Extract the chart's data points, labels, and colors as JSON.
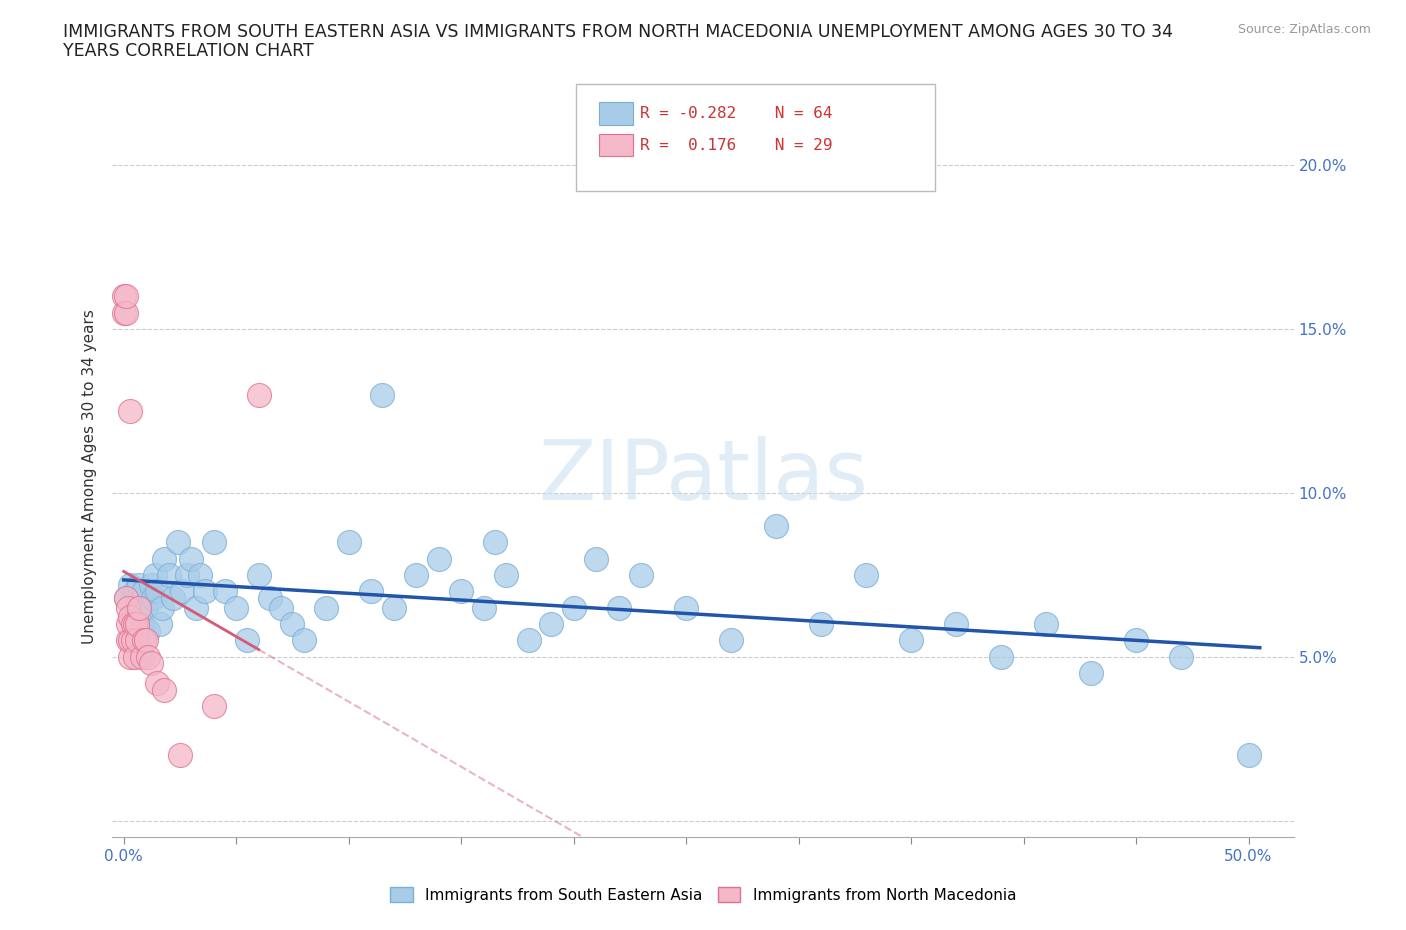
{
  "title_line1": "IMMIGRANTS FROM SOUTH EASTERN ASIA VS IMMIGRANTS FROM NORTH MACEDONIA UNEMPLOYMENT AMONG AGES 30 TO 34",
  "title_line2": "YEARS CORRELATION CHART",
  "source": "Source: ZipAtlas.com",
  "ylabel": "Unemployment Among Ages 30 to 34 years",
  "xlim": [
    -0.005,
    0.52
  ],
  "ylim": [
    -0.005,
    0.215
  ],
  "yticks": [
    0.0,
    0.05,
    0.1,
    0.15,
    0.2
  ],
  "yticklabels_right": [
    "",
    "5.0%",
    "10.0%",
    "15.0%",
    "20.0%"
  ],
  "blue_color": "#a8cce8",
  "blue_edge_color": "#7aaed4",
  "pink_color": "#f4b8c8",
  "pink_edge_color": "#e07090",
  "trend_blue_color": "#2255aa",
  "trend_pink_color": "#d45a7a",
  "grid_color": "#cccccc",
  "background_color": "#ffffff",
  "legend_R_blue": "-0.282",
  "legend_N_blue": "64",
  "legend_R_pink": "0.176",
  "legend_N_pink": "29",
  "label_blue": "Immigrants from South Eastern Asia",
  "label_pink": "Immigrants from North Macedonia",
  "watermark": "ZIPatlas",
  "blue_x": [
    0.001,
    0.003,
    0.005,
    0.006,
    0.007,
    0.008,
    0.009,
    0.01,
    0.011,
    0.012,
    0.013,
    0.014,
    0.015,
    0.016,
    0.017,
    0.018,
    0.02,
    0.022,
    0.024,
    0.026,
    0.028,
    0.03,
    0.032,
    0.034,
    0.036,
    0.04,
    0.045,
    0.05,
    0.055,
    0.06,
    0.065,
    0.07,
    0.075,
    0.08,
    0.09,
    0.1,
    0.11,
    0.115,
    0.12,
    0.13,
    0.14,
    0.15,
    0.16,
    0.165,
    0.17,
    0.18,
    0.19,
    0.2,
    0.21,
    0.22,
    0.23,
    0.25,
    0.27,
    0.29,
    0.31,
    0.33,
    0.35,
    0.37,
    0.39,
    0.41,
    0.43,
    0.45,
    0.47,
    0.5
  ],
  "blue_y": [
    0.068,
    0.072,
    0.07,
    0.065,
    0.072,
    0.06,
    0.07,
    0.065,
    0.058,
    0.072,
    0.068,
    0.075,
    0.07,
    0.06,
    0.065,
    0.08,
    0.075,
    0.068,
    0.085,
    0.07,
    0.075,
    0.08,
    0.065,
    0.075,
    0.07,
    0.085,
    0.07,
    0.065,
    0.055,
    0.075,
    0.068,
    0.065,
    0.06,
    0.055,
    0.065,
    0.085,
    0.07,
    0.13,
    0.065,
    0.075,
    0.08,
    0.07,
    0.065,
    0.085,
    0.075,
    0.055,
    0.06,
    0.065,
    0.08,
    0.065,
    0.075,
    0.065,
    0.055,
    0.09,
    0.06,
    0.075,
    0.055,
    0.06,
    0.05,
    0.06,
    0.045,
    0.055,
    0.05,
    0.02
  ],
  "pink_x": [
    0.0,
    0.0,
    0.001,
    0.001,
    0.001,
    0.002,
    0.002,
    0.002,
    0.003,
    0.003,
    0.003,
    0.003,
    0.004,
    0.004,
    0.005,
    0.005,
    0.006,
    0.006,
    0.007,
    0.008,
    0.009,
    0.01,
    0.011,
    0.012,
    0.015,
    0.018,
    0.025,
    0.04,
    0.06
  ],
  "pink_y": [
    0.16,
    0.155,
    0.155,
    0.16,
    0.068,
    0.065,
    0.055,
    0.06,
    0.062,
    0.05,
    0.055,
    0.125,
    0.06,
    0.055,
    0.06,
    0.05,
    0.055,
    0.06,
    0.065,
    0.05,
    0.055,
    0.055,
    0.05,
    0.048,
    0.042,
    0.04,
    0.02,
    0.035,
    0.13
  ]
}
